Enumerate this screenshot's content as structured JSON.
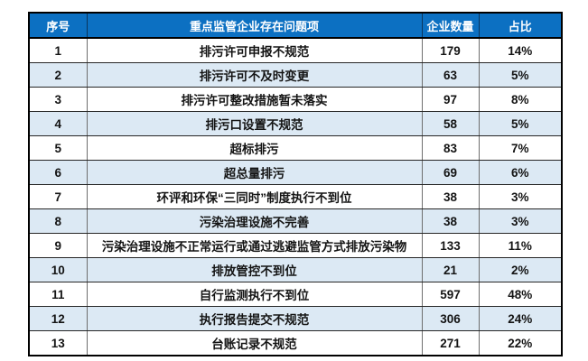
{
  "chart_data": {
    "type": "table",
    "columns": [
      "序号",
      "重点监管企业存在问题项",
      "企业数量",
      "占比"
    ],
    "rows": [
      [
        1,
        "排污许可申报不规范",
        179,
        "14%"
      ],
      [
        2,
        "排污许可不及时变更",
        63,
        "5%"
      ],
      [
        3,
        "排污许可整改措施暂未落实",
        97,
        "8%"
      ],
      [
        4,
        "排污口设置不规范",
        58,
        "5%"
      ],
      [
        5,
        "超标排污",
        83,
        "7%"
      ],
      [
        6,
        "超总量排污",
        69,
        "6%"
      ],
      [
        7,
        "环评和环保“三同时”制度执行不到位",
        38,
        "3%"
      ],
      [
        8,
        "污染治理设施不完善",
        38,
        "3%"
      ],
      [
        9,
        "污染治理设施不正常运行或通过逃避监管方式排放污染物",
        133,
        "11%"
      ],
      [
        10,
        "排放管控不到位",
        21,
        "2%"
      ],
      [
        11,
        "自行监测执行不到位",
        597,
        "48%"
      ],
      [
        12,
        "执行报告提交不规范",
        306,
        "24%"
      ],
      [
        13,
        "台账记录不规范",
        271,
        "22%"
      ]
    ]
  },
  "colors": {
    "header_bg": "#0c70c2",
    "header_text": "#ffffff",
    "row_stripe_bg": "#dce9f4",
    "row_bg": "#ffffff",
    "body_text": "#141414",
    "outer_border": "#000000"
  }
}
